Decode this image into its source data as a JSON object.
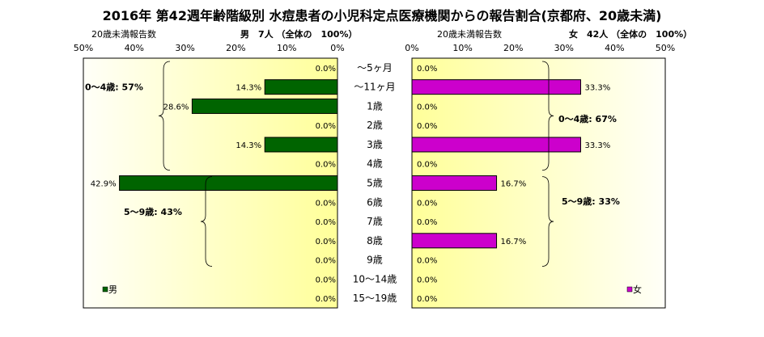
{
  "title": "2016年 第42週年齢階級別 水痘患者の小児科定点医療機関からの報告割合(京都府、20歳未満)",
  "colors": {
    "male": "#006400",
    "female": "#cc00cc",
    "plot_bg_left": "#fffff4",
    "plot_bg_right": "#ffff99",
    "axis": "#000000"
  },
  "chart_data": [
    {
      "type": "bar",
      "orientation": "horizontal",
      "direction": "right-to-left",
      "header_left": "20歳未満報告数",
      "header_right": "男　7人 （全体の　100%）",
      "legend": "男",
      "legend_position": "bottom-left",
      "xlim": [
        0,
        50
      ],
      "ticks": [
        "50%",
        "40%",
        "30%",
        "20%",
        "10%",
        "0%"
      ],
      "categories": [
        "～5ヶ月",
        "～11ヶ月",
        "1歳",
        "2歳",
        "3歳",
        "4歳",
        "5歳",
        "6歳",
        "7歳",
        "8歳",
        "9歳",
        "10～14歳",
        "15～19歳"
      ],
      "values": [
        0.0,
        14.3,
        28.6,
        0.0,
        14.3,
        0.0,
        42.9,
        0.0,
        0.0,
        0.0,
        0.0,
        0.0,
        0.0
      ],
      "labels": [
        "0.0%",
        "14.3%",
        "28.6%",
        "0.0%",
        "14.3%",
        "0.0%",
        "42.9%",
        "0.0%",
        "0.0%",
        "0.0%",
        "0.0%",
        "0.0%",
        "0.0%"
      ],
      "groups": [
        {
          "label": "0～4歳: 57%",
          "from": 0,
          "to": 5
        },
        {
          "label": "5～9歳: 43%",
          "from": 6,
          "to": 10
        }
      ]
    },
    {
      "type": "bar",
      "orientation": "horizontal",
      "direction": "left-to-right",
      "header_left": "20歳未満報告数",
      "header_right": "女　42人 （全体の　100%）",
      "legend": "女",
      "legend_position": "bottom-right",
      "xlim": [
        0,
        50
      ],
      "ticks": [
        "0%",
        "10%",
        "20%",
        "30%",
        "40%",
        "50%"
      ],
      "categories": [
        "～5ヶ月",
        "～11ヶ月",
        "1歳",
        "2歳",
        "3歳",
        "4歳",
        "5歳",
        "6歳",
        "7歳",
        "8歳",
        "9歳",
        "10～14歳",
        "15～19歳"
      ],
      "values": [
        0.0,
        33.3,
        0.0,
        0.0,
        33.3,
        0.0,
        16.7,
        0.0,
        0.0,
        16.7,
        0.0,
        0.0,
        0.0
      ],
      "labels": [
        "0.0%",
        "33.3%",
        "0.0%",
        "0.0%",
        "33.3%",
        "0.0%",
        "16.7%",
        "0.0%",
        "0.0%",
        "16.7%",
        "0.0%",
        "0.0%",
        "0.0%"
      ],
      "groups": [
        {
          "label": "0～4歳: 67%",
          "from": 0,
          "to": 5
        },
        {
          "label": "5～9歳: 33%",
          "from": 6,
          "to": 10
        }
      ]
    }
  ]
}
